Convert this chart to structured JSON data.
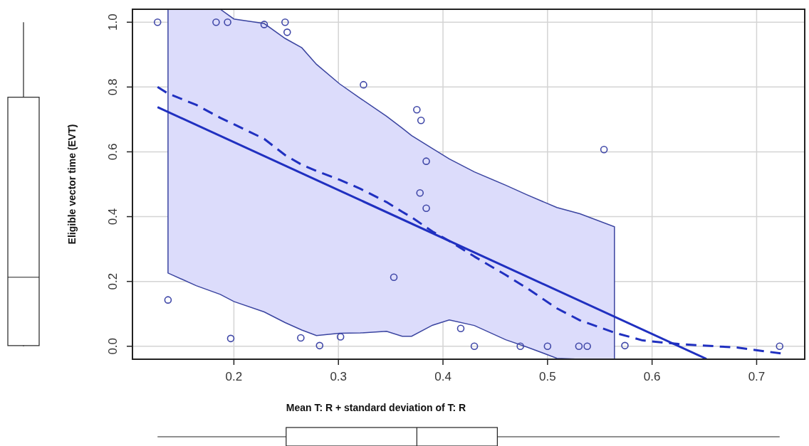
{
  "chart_data": {
    "type": "scatter",
    "xlabel": "Mean T: R + standard deviation of T: R",
    "ylabel": "Eligible vector time (EVT)",
    "xlim": [
      0.103,
      0.746
    ],
    "ylim": [
      -0.04,
      1.04
    ],
    "xticks": [
      0.2,
      0.3,
      0.4,
      0.5,
      0.6,
      0.7
    ],
    "yticks": [
      {
        "value": 0,
        "label": "0.0"
      },
      0.2,
      0.4,
      0.6,
      0.8,
      {
        "value": 1,
        "label": "1.0"
      }
    ],
    "grid": true,
    "series": [
      {
        "type": "scatter",
        "color": "#4048a8",
        "marker": "circle",
        "x": [
          0.127,
          0.137,
          0.183,
          0.194,
          0.197,
          0.229,
          0.249,
          0.251,
          0.264,
          0.282,
          0.302,
          0.324,
          0.353,
          0.375,
          0.379,
          0.378,
          0.384,
          0.384,
          0.417,
          0.43,
          0.474,
          0.5,
          0.53,
          0.538,
          0.554,
          0.574,
          0.722
        ],
        "values": [
          1.0,
          0.143,
          1.0,
          1.0,
          0.024,
          0.993,
          1.0,
          0.969,
          0.026,
          0.002,
          0.029,
          0.807,
          0.213,
          0.73,
          0.697,
          0.473,
          0.571,
          0.426,
          0.055,
          0.0,
          0.0,
          0.0,
          0.0,
          0.0,
          0.607,
          0.002,
          0.0
        ]
      },
      {
        "type": "line",
        "color": "#2030c0",
        "line_style": "solid",
        "x": [
          0.127,
          0.652
        ],
        "values": [
          0.738,
          -0.039
        ]
      },
      {
        "type": "line",
        "color": "#2030c0",
        "line_style": "dashed",
        "x": [
          0.127,
          0.137,
          0.164,
          0.187,
          0.2,
          0.229,
          0.249,
          0.265,
          0.279,
          0.301,
          0.321,
          0.346,
          0.361,
          0.37,
          0.39,
          0.406,
          0.43,
          0.46,
          0.48,
          0.509,
          0.531,
          0.564,
          0.591,
          0.625,
          0.681,
          0.723
        ],
        "values": [
          0.8,
          0.78,
          0.745,
          0.705,
          0.685,
          0.64,
          0.59,
          0.56,
          0.541,
          0.514,
          0.486,
          0.445,
          0.415,
          0.398,
          0.354,
          0.325,
          0.277,
          0.22,
          0.18,
          0.117,
          0.08,
          0.042,
          0.018,
          0.007,
          -0.004,
          -0.022
        ],
        "lower": [
          null,
          0.226,
          0.187,
          0.16,
          0.138,
          0.106,
          0.073,
          0.05,
          0.033,
          0.04,
          0.041,
          0.046,
          0.031,
          0.031,
          0.065,
          0.081,
          0.064,
          0.02,
          -0.002,
          -0.037,
          -0.04,
          -0.04,
          null,
          null,
          null,
          null
        ],
        "upper": [
          null,
          1.04,
          1.04,
          1.04,
          1.01,
          0.996,
          0.95,
          0.921,
          0.87,
          0.81,
          0.765,
          0.71,
          0.673,
          0.65,
          0.61,
          0.578,
          0.538,
          0.497,
          0.468,
          0.428,
          0.409,
          0.369,
          null,
          null,
          null,
          null
        ]
      }
    ]
  }
}
